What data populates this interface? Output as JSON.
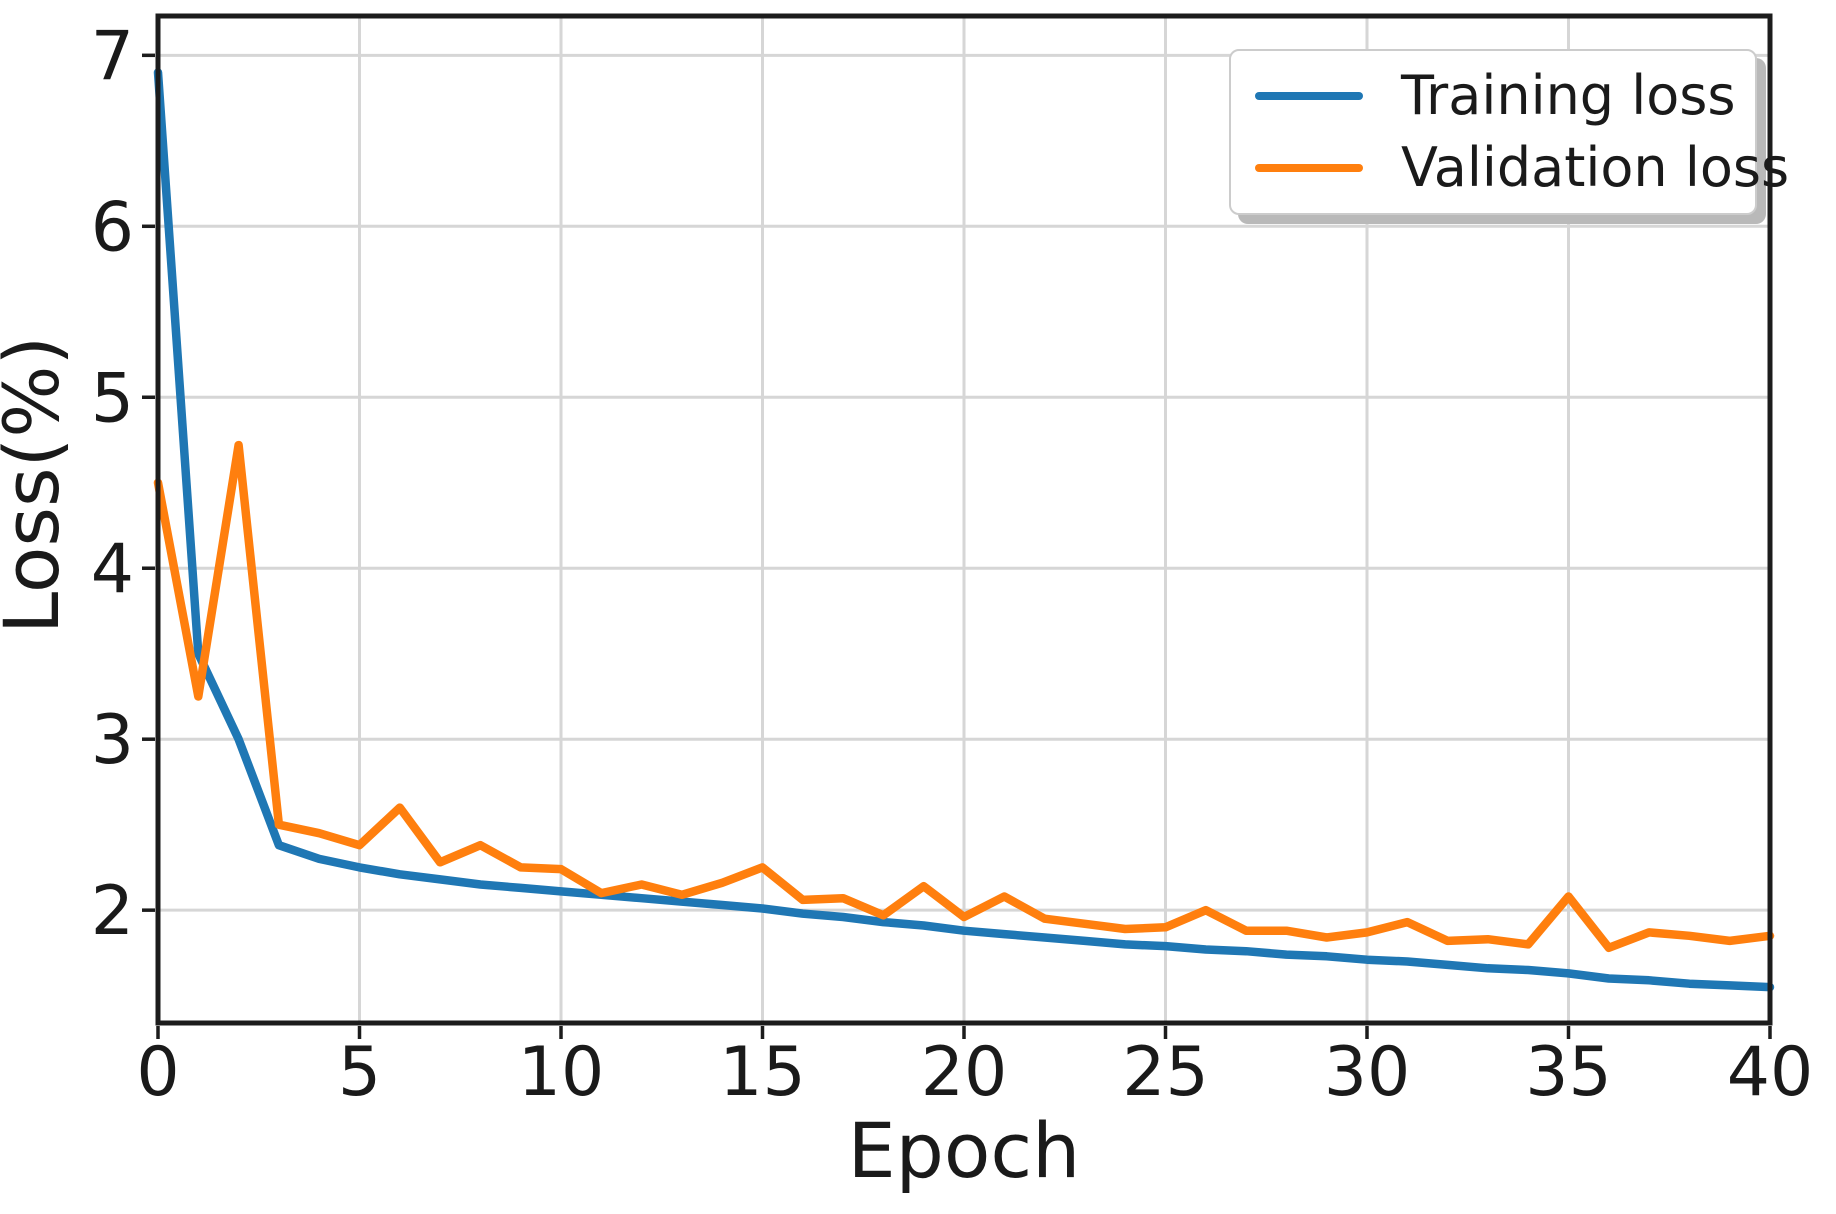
{
  "chart_data": {
    "type": "line",
    "title": "",
    "xlabel": "Epoch",
    "ylabel": "Loss(%)",
    "xlim": [
      0,
      40
    ],
    "ylim": [
      1.34,
      7.23
    ],
    "x_ticks": [
      0,
      5,
      10,
      15,
      20,
      25,
      30,
      35,
      40
    ],
    "y_ticks": [
      2,
      3,
      4,
      5,
      6,
      7
    ],
    "grid": true,
    "grid_color": "#d6d6d6",
    "spine_color": "#1c1c1c",
    "background_color": "#ffffff",
    "x": [
      0,
      1,
      2,
      3,
      4,
      5,
      6,
      7,
      8,
      9,
      10,
      11,
      12,
      13,
      14,
      15,
      16,
      17,
      18,
      19,
      20,
      21,
      22,
      23,
      24,
      25,
      26,
      27,
      28,
      29,
      30,
      31,
      32,
      33,
      34,
      35,
      36,
      37,
      38,
      39,
      40
    ],
    "series": [
      {
        "name": "Training loss",
        "color": "#1f77b4",
        "values": [
          6.9,
          3.5,
          3.0,
          2.38,
          2.3,
          2.25,
          2.21,
          2.18,
          2.15,
          2.13,
          2.11,
          2.09,
          2.07,
          2.05,
          2.03,
          2.01,
          1.98,
          1.96,
          1.93,
          1.91,
          1.88,
          1.86,
          1.84,
          1.82,
          1.8,
          1.79,
          1.77,
          1.76,
          1.74,
          1.73,
          1.71,
          1.7,
          1.68,
          1.66,
          1.65,
          1.63,
          1.6,
          1.59,
          1.57,
          1.56,
          1.55
        ]
      },
      {
        "name": "Validation loss",
        "color": "#ff7f0e",
        "values": [
          4.5,
          3.25,
          4.72,
          2.5,
          2.45,
          2.38,
          2.6,
          2.28,
          2.38,
          2.25,
          2.24,
          2.1,
          2.15,
          2.09,
          2.16,
          2.25,
          2.06,
          2.07,
          1.97,
          2.14,
          1.96,
          2.08,
          1.95,
          1.92,
          1.89,
          1.9,
          2.0,
          1.88,
          1.88,
          1.84,
          1.87,
          1.93,
          1.82,
          1.83,
          1.8,
          2.08,
          1.78,
          1.87,
          1.85,
          1.82,
          1.85
        ]
      }
    ],
    "legend": {
      "position": "upper right",
      "entries": [
        "Training loss",
        "Validation loss"
      ]
    }
  }
}
